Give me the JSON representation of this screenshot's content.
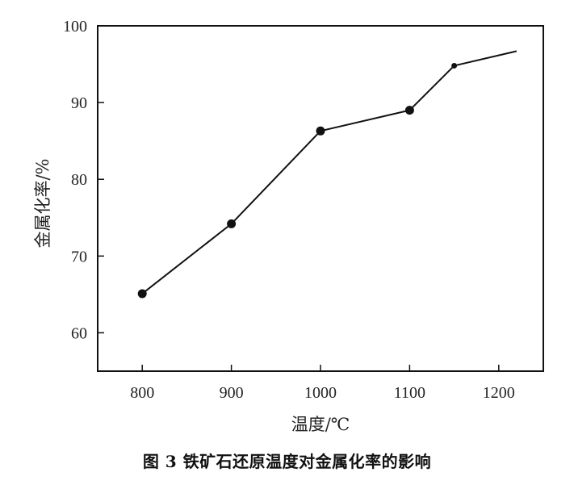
{
  "caption": "图 3 铁矿石还原温度对金属化率的影响",
  "chart_data": {
    "type": "line",
    "title": "",
    "xlabel": "温度/℃",
    "ylabel": "金属化率/%",
    "xlim": [
      750,
      1250
    ],
    "ylim": [
      55,
      100
    ],
    "xticks": [
      800,
      900,
      1000,
      1100,
      1200
    ],
    "yticks": [
      60,
      70,
      80,
      90,
      100
    ],
    "x": [
      800,
      900,
      1000,
      1100,
      1150,
      1220
    ],
    "y": [
      65.1,
      74.2,
      86.3,
      89.0,
      94.8,
      96.7
    ],
    "markers": [
      true,
      true,
      true,
      true,
      true,
      false
    ],
    "line_color": "#111111",
    "grid": false,
    "legend": "none"
  }
}
